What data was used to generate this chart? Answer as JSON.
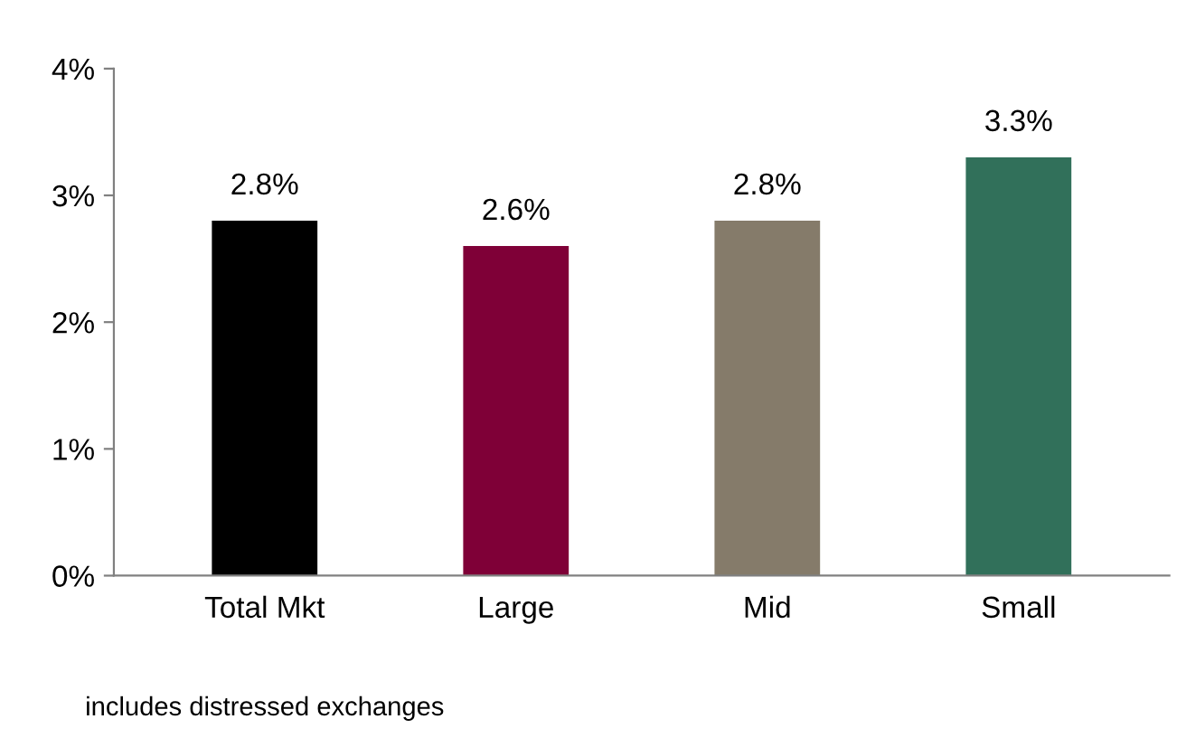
{
  "chart_data": {
    "type": "bar",
    "categories": [
      "Total Mkt",
      "Large",
      "Mid",
      "Small"
    ],
    "values": [
      2.8,
      2.6,
      2.8,
      3.3
    ],
    "colors": [
      "#000000",
      "#7f0037",
      "#857b6a",
      "#31705a"
    ],
    "value_labels": [
      "2.8%",
      "2.6%",
      "2.8%",
      "3.3%"
    ],
    "ylim": [
      0,
      4
    ],
    "yticks": [
      {
        "value": 0,
        "label": "0%"
      },
      {
        "value": 1,
        "label": "1%"
      },
      {
        "value": 2,
        "label": "2%"
      },
      {
        "value": 3,
        "label": "3%"
      },
      {
        "value": 4,
        "label": "4%"
      }
    ],
    "grid": false,
    "annotations": [
      "includes distressed exchanges"
    ]
  }
}
